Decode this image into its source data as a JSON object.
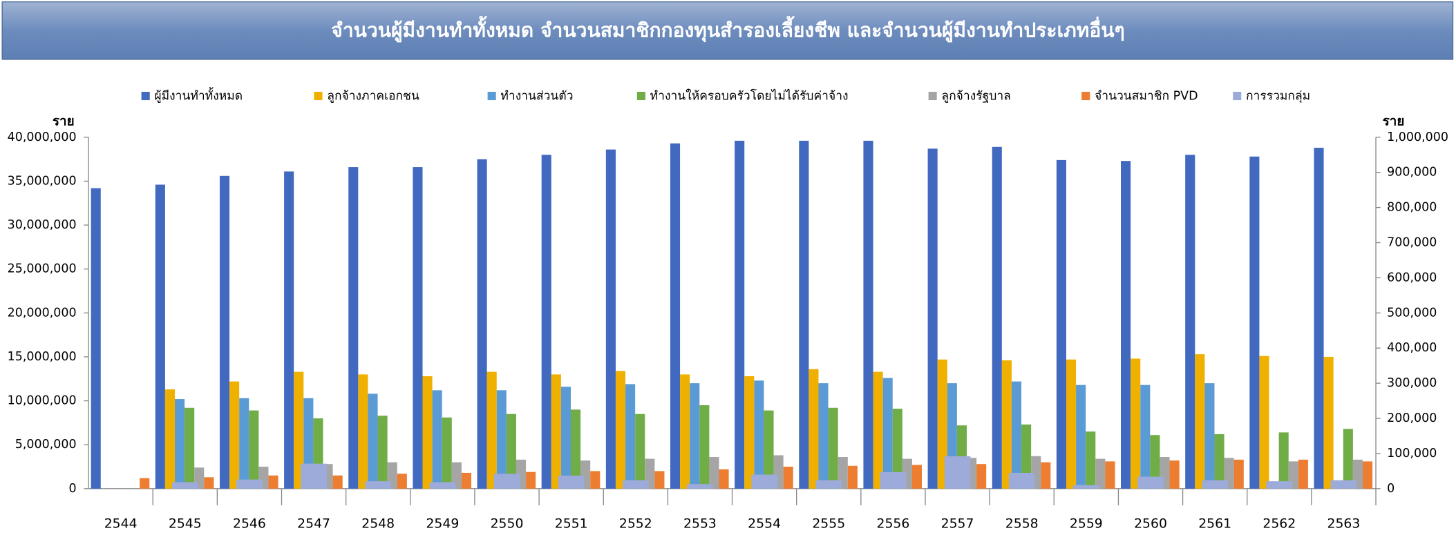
{
  "chart_data": {
    "type": "bar",
    "title": "จำนวนผู้มีงานทำทั้งหมด จำนวนสมาชิกกองทุนสำรองเลี้ยงชีพ และจำนวนผู้มีงานทำประเภทอื่นๆ",
    "y_label": "ราย",
    "y2_label": "ราย",
    "categories": [
      "2544",
      "2545",
      "2546",
      "2547",
      "2548",
      "2549",
      "2550",
      "2551",
      "2552",
      "2553",
      "2554",
      "2555",
      "2556",
      "2557",
      "2558",
      "2559",
      "2560",
      "2561",
      "2562",
      "2563"
    ],
    "ylim": [
      0,
      40000000
    ],
    "yticks": [
      {
        "value": 0,
        "label": "0"
      },
      {
        "value": 5000000,
        "label": "5,000,000"
      },
      {
        "value": 10000000,
        "label": "10,000,000"
      },
      {
        "value": 15000000,
        "label": "15,000,000"
      },
      {
        "value": 20000000,
        "label": "20,000,000"
      },
      {
        "value": 25000000,
        "label": "25,000,000"
      },
      {
        "value": 30000000,
        "label": "30,000,000"
      },
      {
        "value": 35000000,
        "label": "35,000,000"
      },
      {
        "value": 40000000,
        "label": "40,000,000"
      }
    ],
    "y2lim": [
      0,
      1000000
    ],
    "y2ticks": [
      {
        "value": 0,
        "label": "0"
      },
      {
        "value": 100000,
        "label": "100,000"
      },
      {
        "value": 200000,
        "label": "200,000"
      },
      {
        "value": 300000,
        "label": "300,000"
      },
      {
        "value": 400000,
        "label": "400,000"
      },
      {
        "value": 500000,
        "label": "500,000"
      },
      {
        "value": 600000,
        "label": "600,000"
      },
      {
        "value": 700000,
        "label": "700,000"
      },
      {
        "value": 800000,
        "label": "800,000"
      },
      {
        "value": 900000,
        "label": "900,000"
      },
      {
        "value": 1000000,
        "label": "1,000,000"
      }
    ],
    "grid": false,
    "legend": "top",
    "series": [
      {
        "name": "ผู้มีงานทำทั้งหมด",
        "color": "#4069bf",
        "values": [
          34200000,
          34600000,
          35600000,
          36100000,
          36600000,
          36600000,
          37500000,
          38000000,
          38600000,
          39300000,
          39600000,
          39600000,
          39600000,
          38700000,
          38900000,
          37400000,
          37300000,
          38000000,
          37800000,
          38800000
        ]
      },
      {
        "name": "ลูกจ้างภาคเอกชน",
        "color": "#f0b000",
        "values": [
          null,
          11300000,
          12200000,
          13300000,
          13000000,
          12800000,
          13300000,
          13000000,
          13400000,
          13000000,
          12800000,
          13600000,
          13300000,
          14700000,
          14600000,
          14700000,
          14800000,
          15300000,
          15100000,
          15000000
        ]
      },
      {
        "name": "ทำงานส่วนตัว",
        "color": "#5b9bd5",
        "values": [
          null,
          10200000,
          10300000,
          10300000,
          10800000,
          11200000,
          11200000,
          11600000,
          11900000,
          12000000,
          12300000,
          12000000,
          12600000,
          12000000,
          12200000,
          11800000,
          11800000,
          12000000,
          null,
          null
        ]
      },
      {
        "name": "ทำงานให้ครอบครัวโดยไม่ได้รับค่าจ้าง",
        "color": "#70ad47",
        "values": [
          null,
          9200000,
          8900000,
          8000000,
          8300000,
          8100000,
          8500000,
          9000000,
          8500000,
          9500000,
          8900000,
          9200000,
          9100000,
          7200000,
          7300000,
          6500000,
          6100000,
          6200000,
          6400000,
          6800000
        ]
      },
      {
        "name": "ลูกจ้างรัฐบาล",
        "color": "#a5a5a5",
        "values": [
          null,
          2400000,
          2500000,
          2800000,
          3000000,
          3000000,
          3300000,
          3200000,
          3400000,
          3600000,
          3800000,
          3600000,
          3400000,
          3500000,
          3700000,
          3400000,
          3600000,
          3500000,
          3100000,
          3300000
        ]
      },
      {
        "name": "จำนวนสมาชิก PVD",
        "color": "#ed7d31",
        "values": [
          1200000,
          1300000,
          1500000,
          1500000,
          1700000,
          1800000,
          1900000,
          2000000,
          2000000,
          2200000,
          2500000,
          2600000,
          2700000,
          2800000,
          3000000,
          3100000,
          3200000,
          3300000,
          3300000,
          3100000
        ]
      },
      {
        "name": "การรวมกลุ่ม",
        "color": "#9dabdb",
        "axis": "y2",
        "values": [
          null,
          18500,
          26000,
          71000,
          21000,
          18500,
          42000,
          37000,
          24000,
          13000,
          40000,
          24000,
          47000,
          92000,
          45000,
          10000,
          34000,
          24000,
          21000,
          24000
        ]
      }
    ]
  }
}
